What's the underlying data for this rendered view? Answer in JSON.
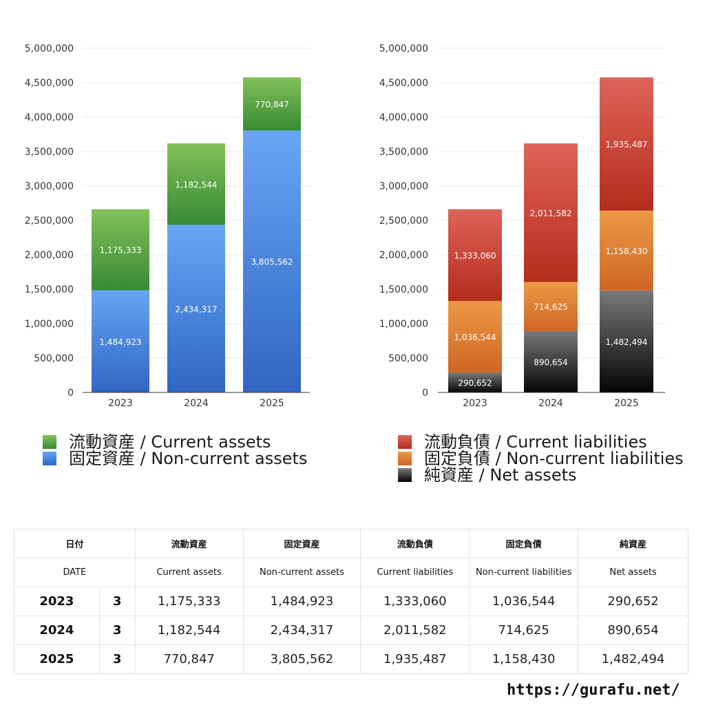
{
  "chart_data": [
    {
      "type": "bar",
      "stacked": true,
      "categories": [
        "2023",
        "2024",
        "2025"
      ],
      "ylim": [
        0,
        5000000
      ],
      "yticks": [
        "0",
        "500,000",
        "1,000,000",
        "1,500,000",
        "2,000,000",
        "2,500,000",
        "3,000,000",
        "3,500,000",
        "4,000,000",
        "4,500,000",
        "5,000,000"
      ],
      "grid": true,
      "series": [
        {
          "name": "固定資産 / Non-current assets",
          "values": [
            1484923,
            2434317,
            3805562
          ],
          "labels": [
            "1,484,923",
            "2,434,317",
            "3,805,562"
          ],
          "color_top": "#69a5f4",
          "color_bottom": "#2f66c4"
        },
        {
          "name": "流動資産 / Current assets",
          "values": [
            1175333,
            1182544,
            770847
          ],
          "labels": [
            "1,175,333",
            "1,182,544",
            "770,847"
          ],
          "color_top": "#83c159",
          "color_bottom": "#378a34"
        }
      ]
    },
    {
      "type": "bar",
      "stacked": true,
      "categories": [
        "2023",
        "2024",
        "2025"
      ],
      "ylim": [
        0,
        5000000
      ],
      "yticks": [
        "0",
        "500,000",
        "1,000,000",
        "1,500,000",
        "2,000,000",
        "2,500,000",
        "3,000,000",
        "3,500,000",
        "4,000,000",
        "4,500,000",
        "5,000,000"
      ],
      "grid": true,
      "series": [
        {
          "name": "純資産 / Net assets",
          "values": [
            290652,
            890654,
            1482494
          ],
          "labels": [
            "290,652",
            "890,654",
            "1,482,494"
          ],
          "color_top": "#7a7a7a",
          "color_bottom": "#050505"
        },
        {
          "name": "固定負債 / Non-current liabilities",
          "values": [
            1036544,
            714625,
            1158430
          ],
          "labels": [
            "1,036,544",
            "714,625",
            "1,158,430"
          ],
          "color_top": "#ec9a45",
          "color_bottom": "#cf6623"
        },
        {
          "name": "流動負債 / Current liabilities",
          "values": [
            1333060,
            2011582,
            1935487
          ],
          "labels": [
            "1,333,060",
            "2,011,582",
            "1,935,487"
          ],
          "color_top": "#de6458",
          "color_bottom": "#b52c1c"
        }
      ]
    }
  ],
  "legend_left": [
    {
      "label": "流動資産 / Current assets",
      "color": "#55a441"
    },
    {
      "label": "固定資産 / Non-current assets",
      "color": "#4a86de"
    }
  ],
  "legend_right": [
    {
      "label": "流動負債 / Current liabilities",
      "color": "#cd4034"
    },
    {
      "label": "固定負債 / Non-current liabilities",
      "color": "#e48536"
    },
    {
      "label": "純資産 / Net assets",
      "color": "#2e2e2e"
    }
  ],
  "table": {
    "header_jp": [
      "日付",
      "流動資産",
      "固定資産",
      "流動負債",
      "固定負債",
      "純資産"
    ],
    "header_en": [
      "DATE",
      "Current assets",
      "Non-current assets",
      "Current liabilities",
      "Non-current liabilities",
      "Net assets"
    ],
    "rows": [
      {
        "year": "2023",
        "month": "3",
        "values": [
          "1,175,333",
          "1,484,923",
          "1,333,060",
          "1,036,544",
          "290,652"
        ]
      },
      {
        "year": "2024",
        "month": "3",
        "values": [
          "1,182,544",
          "2,434,317",
          "2,011,582",
          "714,625",
          "890,654"
        ]
      },
      {
        "year": "2025",
        "month": "3",
        "values": [
          "770,847",
          "3,805,562",
          "1,935,487",
          "1,158,430",
          "1,482,494"
        ]
      }
    ]
  },
  "footer_url": "https://gurafu.net/"
}
